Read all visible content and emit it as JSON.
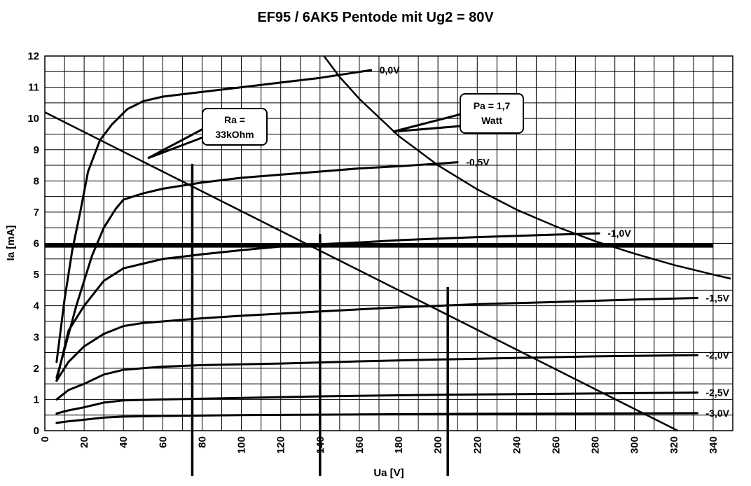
{
  "chart_data": {
    "type": "line",
    "title": "EF95 / 6AK5 Pentode mit Ug2 = 80V",
    "xlabel": "Ua [V]",
    "ylabel": "Ia [mA]",
    "xlim": [
      0,
      350
    ],
    "ylim": [
      0,
      12
    ],
    "grid": true,
    "x_ticks": [
      "0",
      "20",
      "40",
      "60",
      "80",
      "100",
      "120",
      "140",
      "160",
      "180",
      "200",
      "220",
      "240",
      "260",
      "280",
      "300",
      "320",
      "340"
    ],
    "y_ticks": [
      "0",
      "1",
      "2",
      "3",
      "4",
      "5",
      "6",
      "7",
      "8",
      "9",
      "10",
      "11",
      "12"
    ],
    "series": [
      {
        "name": "0,0V",
        "points": [
          [
            6,
            2.2
          ],
          [
            10,
            4.2
          ],
          [
            14,
            5.8
          ],
          [
            18,
            7.0
          ],
          [
            22,
            8.3
          ],
          [
            28,
            9.3
          ],
          [
            34,
            9.8
          ],
          [
            42,
            10.3
          ],
          [
            50,
            10.55
          ],
          [
            60,
            10.7
          ],
          [
            80,
            10.85
          ],
          [
            100,
            11.0
          ],
          [
            120,
            11.15
          ],
          [
            140,
            11.3
          ],
          [
            166,
            11.55
          ]
        ]
      },
      {
        "name": "-0,5V",
        "points": [
          [
            6,
            1.7
          ],
          [
            10,
            2.6
          ],
          [
            16,
            4.0
          ],
          [
            24,
            5.6
          ],
          [
            30,
            6.5
          ],
          [
            36,
            7.1
          ],
          [
            40,
            7.4
          ],
          [
            50,
            7.6
          ],
          [
            60,
            7.75
          ],
          [
            80,
            7.95
          ],
          [
            100,
            8.1
          ],
          [
            120,
            8.2
          ],
          [
            140,
            8.3
          ],
          [
            160,
            8.4
          ],
          [
            180,
            8.47
          ],
          [
            200,
            8.55
          ],
          [
            210,
            8.6
          ]
        ]
      },
      {
        "name": "-1,0V",
        "points": [
          [
            6,
            1.6
          ],
          [
            12,
            3.2
          ],
          [
            20,
            4.0
          ],
          [
            30,
            4.8
          ],
          [
            40,
            5.2
          ],
          [
            50,
            5.35
          ],
          [
            60,
            5.5
          ],
          [
            80,
            5.65
          ],
          [
            100,
            5.78
          ],
          [
            120,
            5.9
          ],
          [
            140,
            5.97
          ],
          [
            160,
            6.03
          ],
          [
            180,
            6.1
          ],
          [
            200,
            6.15
          ],
          [
            220,
            6.2
          ],
          [
            260,
            6.28
          ],
          [
            282,
            6.32
          ]
        ]
      },
      {
        "name": "-1,5V",
        "points": [
          [
            6,
            1.6
          ],
          [
            12,
            2.2
          ],
          [
            20,
            2.7
          ],
          [
            30,
            3.1
          ],
          [
            40,
            3.35
          ],
          [
            50,
            3.45
          ],
          [
            60,
            3.5
          ],
          [
            80,
            3.6
          ],
          [
            100,
            3.68
          ],
          [
            140,
            3.82
          ],
          [
            180,
            3.95
          ],
          [
            220,
            4.05
          ],
          [
            260,
            4.12
          ],
          [
            300,
            4.2
          ],
          [
            332,
            4.25
          ]
        ]
      },
      {
        "name": "-2,0V",
        "points": [
          [
            6,
            1.0
          ],
          [
            12,
            1.3
          ],
          [
            20,
            1.5
          ],
          [
            30,
            1.8
          ],
          [
            40,
            1.95
          ],
          [
            50,
            2.0
          ],
          [
            60,
            2.05
          ],
          [
            80,
            2.1
          ],
          [
            120,
            2.15
          ],
          [
            160,
            2.22
          ],
          [
            200,
            2.28
          ],
          [
            240,
            2.33
          ],
          [
            280,
            2.38
          ],
          [
            332,
            2.42
          ]
        ]
      },
      {
        "name": "-2,5V",
        "points": [
          [
            6,
            0.55
          ],
          [
            12,
            0.65
          ],
          [
            20,
            0.75
          ],
          [
            30,
            0.9
          ],
          [
            40,
            0.97
          ],
          [
            60,
            1.0
          ],
          [
            100,
            1.05
          ],
          [
            140,
            1.1
          ],
          [
            200,
            1.15
          ],
          [
            260,
            1.18
          ],
          [
            332,
            1.22
          ]
        ]
      },
      {
        "name": "-3,0V",
        "points": [
          [
            6,
            0.25
          ],
          [
            12,
            0.3
          ],
          [
            20,
            0.35
          ],
          [
            30,
            0.42
          ],
          [
            40,
            0.45
          ],
          [
            60,
            0.47
          ],
          [
            100,
            0.5
          ],
          [
            160,
            0.52
          ],
          [
            220,
            0.54
          ],
          [
            280,
            0.55
          ],
          [
            332,
            0.56
          ]
        ]
      }
    ],
    "load_line": {
      "label": "Ra = 33kOhm",
      "points": [
        [
          0,
          10.2
        ],
        [
          322,
          0
        ]
      ]
    },
    "power_hyperbola": {
      "label": "Pa = 1,7 Watt",
      "watts": 1.7,
      "points": [
        [
          142,
          12.0
        ],
        [
          150,
          11.33
        ],
        [
          160,
          10.63
        ],
        [
          180,
          9.44
        ],
        [
          200,
          8.5
        ],
        [
          220,
          7.73
        ],
        [
          240,
          7.08
        ],
        [
          260,
          6.54
        ],
        [
          280,
          6.07
        ],
        [
          300,
          5.67
        ],
        [
          320,
          5.31
        ],
        [
          340,
          5.0
        ],
        [
          349,
          4.87
        ]
      ]
    },
    "annotations": [
      {
        "text": "Ra =",
        "line2": "33kOhm"
      },
      {
        "text": "Pa = 1,7",
        "line2": "Watt"
      }
    ],
    "operating_point_ia": 5.93,
    "marker_lines_ua": [
      75,
      140,
      205
    ]
  }
}
